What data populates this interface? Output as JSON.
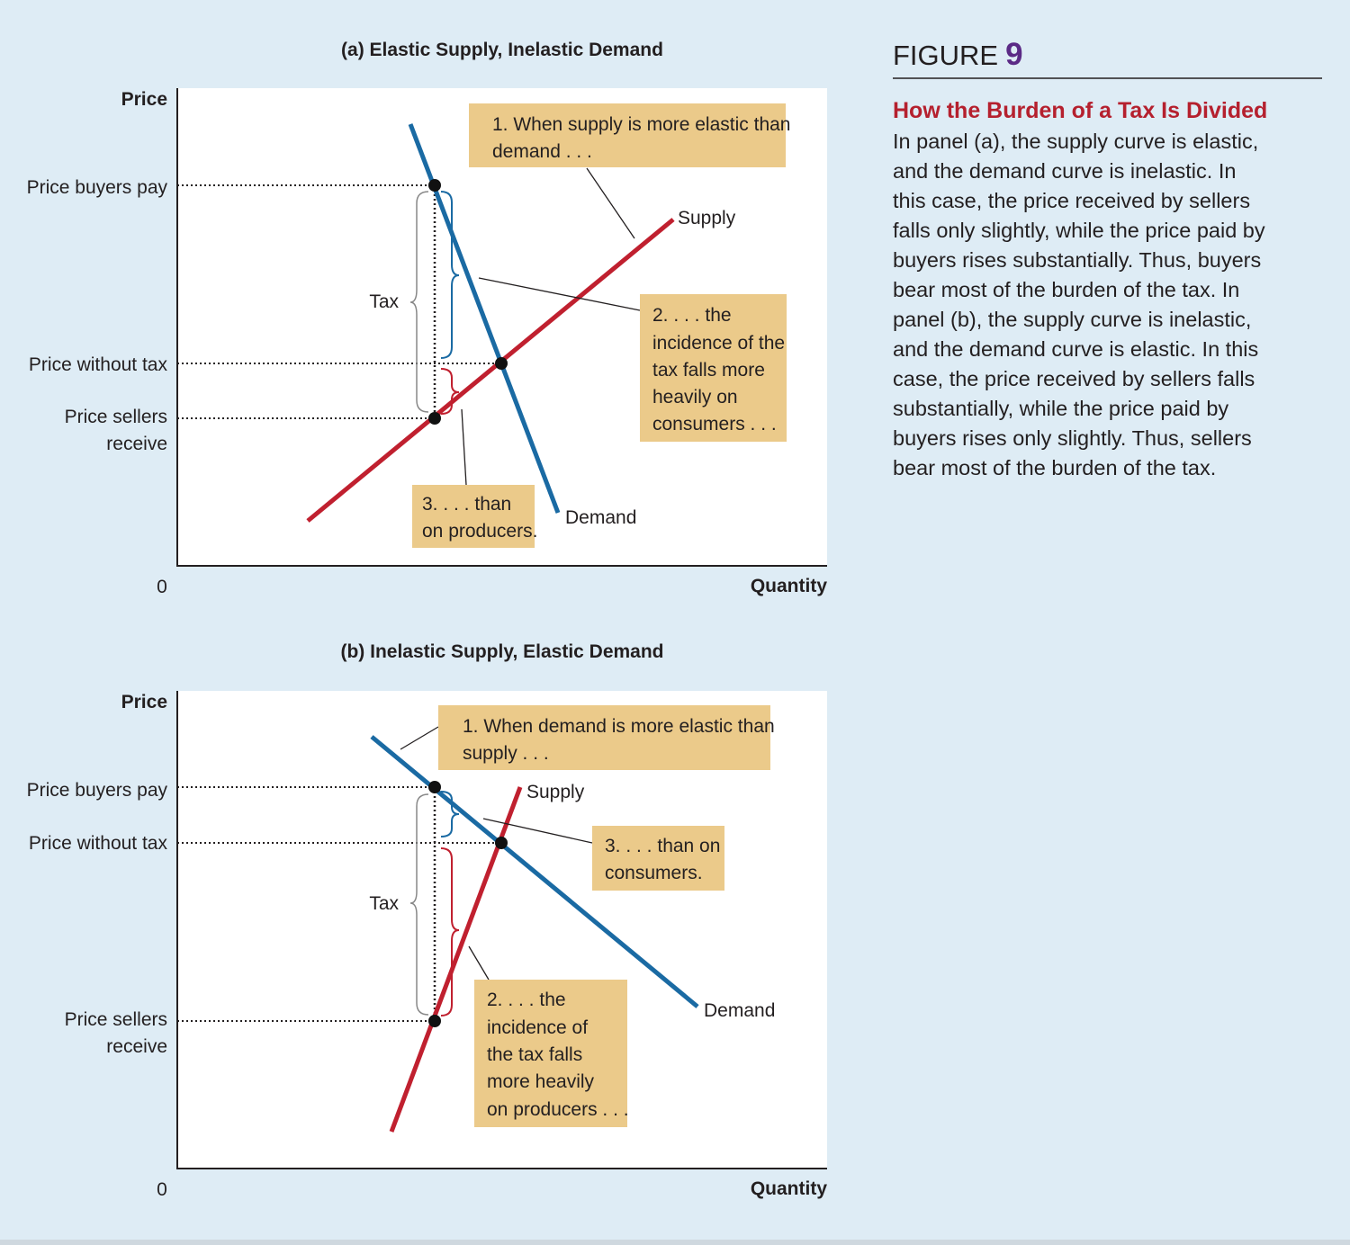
{
  "figure": {
    "label": "FIGURE",
    "number": "9",
    "caption_title": "How the Burden of a Tax Is Divided",
    "caption_lines": [
      "In panel (a), the supply curve is elastic,",
      "and the demand curve is inelastic. In",
      "this case, the price received by sellers",
      "falls only slightly, while the price paid by",
      "buyers rises substantially. Thus, buyers",
      "bear most of the burden of the tax. In",
      "panel (b), the supply curve is inelastic,",
      "and the demand curve is elastic. In this",
      "case, the price received by sellers falls",
      "substantially, while the price paid by",
      "buyers rises only slightly. Thus, sellers",
      "bear most of the burden of the tax."
    ]
  },
  "panel_a": {
    "title": "(a) Elastic Supply, Inelastic Demand",
    "y_axis_label": "Price",
    "x_axis_label": "Quantity",
    "origin_label": "0",
    "price_buyers_pay": "Price buyers pay",
    "price_without_tax": "Price without tax",
    "price_sellers_receive_1": "Price sellers",
    "price_sellers_receive_2": "receive",
    "tax_label": "Tax",
    "supply_label": "Supply",
    "demand_label": "Demand",
    "callout_1": [
      "1. When supply is more elastic than",
      "demand . . ."
    ],
    "callout_2": [
      "2. . . . the",
      "incidence of the",
      "tax falls more",
      "heavily on",
      "consumers . . ."
    ],
    "callout_3": [
      "3. . . . than",
      "on producers."
    ]
  },
  "panel_b": {
    "title": "(b) Inelastic Supply, Elastic Demand",
    "y_axis_label": "Price",
    "x_axis_label": "Quantity",
    "origin_label": "0",
    "price_buyers_pay": "Price buyers pay",
    "price_without_tax": "Price without tax",
    "price_sellers_receive_1": "Price sellers",
    "price_sellers_receive_2": "receive",
    "tax_label": "Tax",
    "supply_label": "Supply",
    "demand_label": "Demand",
    "callout_1": [
      "1. When demand is more elastic than",
      "supply . . ."
    ],
    "callout_2": [
      "2. . . . the",
      "incidence of",
      "the tax falls",
      "more heavily",
      "on producers . . ."
    ],
    "callout_3": [
      "3. . . . than on",
      "consumers."
    ]
  },
  "colors": {
    "supply": "#c0202f",
    "demand": "#1a6aa3",
    "callout_fill": "#ebca8a",
    "background": "#deecf5",
    "plot_area": "#ffffff"
  }
}
